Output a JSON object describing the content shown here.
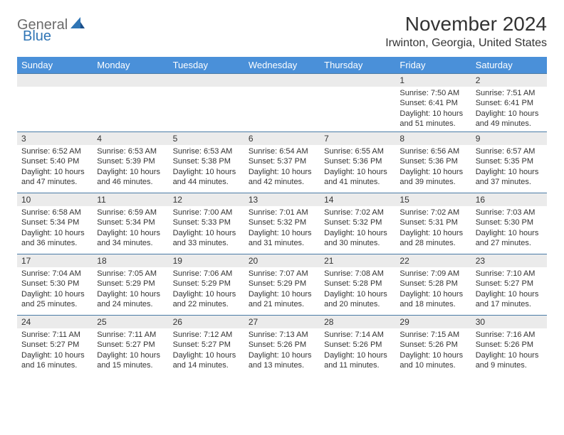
{
  "brand": {
    "part1": "General",
    "part2": "Blue"
  },
  "title": "November 2024",
  "location": "Irwinton, Georgia, United States",
  "colors": {
    "header_bg": "#4a90d9",
    "header_fg": "#ffffff",
    "strip_bg": "#ebebeb",
    "row_border": "#4a7ba6",
    "logo_grey": "#6b6b6b",
    "logo_blue": "#2f75b5"
  },
  "day_headers": [
    "Sunday",
    "Monday",
    "Tuesday",
    "Wednesday",
    "Thursday",
    "Friday",
    "Saturday"
  ],
  "weeks": [
    [
      {
        "date": "",
        "lines": []
      },
      {
        "date": "",
        "lines": []
      },
      {
        "date": "",
        "lines": []
      },
      {
        "date": "",
        "lines": []
      },
      {
        "date": "",
        "lines": []
      },
      {
        "date": "1",
        "lines": [
          "Sunrise: 7:50 AM",
          "Sunset: 6:41 PM",
          "Daylight: 10 hours and 51 minutes."
        ]
      },
      {
        "date": "2",
        "lines": [
          "Sunrise: 7:51 AM",
          "Sunset: 6:41 PM",
          "Daylight: 10 hours and 49 minutes."
        ]
      }
    ],
    [
      {
        "date": "3",
        "lines": [
          "Sunrise: 6:52 AM",
          "Sunset: 5:40 PM",
          "Daylight: 10 hours and 47 minutes."
        ]
      },
      {
        "date": "4",
        "lines": [
          "Sunrise: 6:53 AM",
          "Sunset: 5:39 PM",
          "Daylight: 10 hours and 46 minutes."
        ]
      },
      {
        "date": "5",
        "lines": [
          "Sunrise: 6:53 AM",
          "Sunset: 5:38 PM",
          "Daylight: 10 hours and 44 minutes."
        ]
      },
      {
        "date": "6",
        "lines": [
          "Sunrise: 6:54 AM",
          "Sunset: 5:37 PM",
          "Daylight: 10 hours and 42 minutes."
        ]
      },
      {
        "date": "7",
        "lines": [
          "Sunrise: 6:55 AM",
          "Sunset: 5:36 PM",
          "Daylight: 10 hours and 41 minutes."
        ]
      },
      {
        "date": "8",
        "lines": [
          "Sunrise: 6:56 AM",
          "Sunset: 5:36 PM",
          "Daylight: 10 hours and 39 minutes."
        ]
      },
      {
        "date": "9",
        "lines": [
          "Sunrise: 6:57 AM",
          "Sunset: 5:35 PM",
          "Daylight: 10 hours and 37 minutes."
        ]
      }
    ],
    [
      {
        "date": "10",
        "lines": [
          "Sunrise: 6:58 AM",
          "Sunset: 5:34 PM",
          "Daylight: 10 hours and 36 minutes."
        ]
      },
      {
        "date": "11",
        "lines": [
          "Sunrise: 6:59 AM",
          "Sunset: 5:34 PM",
          "Daylight: 10 hours and 34 minutes."
        ]
      },
      {
        "date": "12",
        "lines": [
          "Sunrise: 7:00 AM",
          "Sunset: 5:33 PM",
          "Daylight: 10 hours and 33 minutes."
        ]
      },
      {
        "date": "13",
        "lines": [
          "Sunrise: 7:01 AM",
          "Sunset: 5:32 PM",
          "Daylight: 10 hours and 31 minutes."
        ]
      },
      {
        "date": "14",
        "lines": [
          "Sunrise: 7:02 AM",
          "Sunset: 5:32 PM",
          "Daylight: 10 hours and 30 minutes."
        ]
      },
      {
        "date": "15",
        "lines": [
          "Sunrise: 7:02 AM",
          "Sunset: 5:31 PM",
          "Daylight: 10 hours and 28 minutes."
        ]
      },
      {
        "date": "16",
        "lines": [
          "Sunrise: 7:03 AM",
          "Sunset: 5:30 PM",
          "Daylight: 10 hours and 27 minutes."
        ]
      }
    ],
    [
      {
        "date": "17",
        "lines": [
          "Sunrise: 7:04 AM",
          "Sunset: 5:30 PM",
          "Daylight: 10 hours and 25 minutes."
        ]
      },
      {
        "date": "18",
        "lines": [
          "Sunrise: 7:05 AM",
          "Sunset: 5:29 PM",
          "Daylight: 10 hours and 24 minutes."
        ]
      },
      {
        "date": "19",
        "lines": [
          "Sunrise: 7:06 AM",
          "Sunset: 5:29 PM",
          "Daylight: 10 hours and 22 minutes."
        ]
      },
      {
        "date": "20",
        "lines": [
          "Sunrise: 7:07 AM",
          "Sunset: 5:29 PM",
          "Daylight: 10 hours and 21 minutes."
        ]
      },
      {
        "date": "21",
        "lines": [
          "Sunrise: 7:08 AM",
          "Sunset: 5:28 PM",
          "Daylight: 10 hours and 20 minutes."
        ]
      },
      {
        "date": "22",
        "lines": [
          "Sunrise: 7:09 AM",
          "Sunset: 5:28 PM",
          "Daylight: 10 hours and 18 minutes."
        ]
      },
      {
        "date": "23",
        "lines": [
          "Sunrise: 7:10 AM",
          "Sunset: 5:27 PM",
          "Daylight: 10 hours and 17 minutes."
        ]
      }
    ],
    [
      {
        "date": "24",
        "lines": [
          "Sunrise: 7:11 AM",
          "Sunset: 5:27 PM",
          "Daylight: 10 hours and 16 minutes."
        ]
      },
      {
        "date": "25",
        "lines": [
          "Sunrise: 7:11 AM",
          "Sunset: 5:27 PM",
          "Daylight: 10 hours and 15 minutes."
        ]
      },
      {
        "date": "26",
        "lines": [
          "Sunrise: 7:12 AM",
          "Sunset: 5:27 PM",
          "Daylight: 10 hours and 14 minutes."
        ]
      },
      {
        "date": "27",
        "lines": [
          "Sunrise: 7:13 AM",
          "Sunset: 5:26 PM",
          "Daylight: 10 hours and 13 minutes."
        ]
      },
      {
        "date": "28",
        "lines": [
          "Sunrise: 7:14 AM",
          "Sunset: 5:26 PM",
          "Daylight: 10 hours and 11 minutes."
        ]
      },
      {
        "date": "29",
        "lines": [
          "Sunrise: 7:15 AM",
          "Sunset: 5:26 PM",
          "Daylight: 10 hours and 10 minutes."
        ]
      },
      {
        "date": "30",
        "lines": [
          "Sunrise: 7:16 AM",
          "Sunset: 5:26 PM",
          "Daylight: 10 hours and 9 minutes."
        ]
      }
    ]
  ]
}
